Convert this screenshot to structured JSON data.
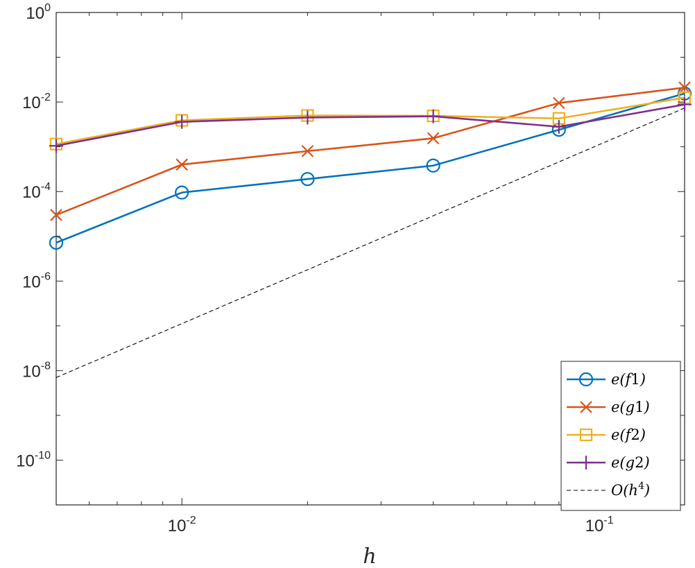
{
  "chart_data": {
    "type": "line",
    "xscale": "log",
    "yscale": "log",
    "xlabel": "h",
    "ylabel": "",
    "title": "",
    "xlim": [
      0.005,
      0.16
    ],
    "ylim": [
      1e-11,
      1
    ],
    "grid": false,
    "legend_position": "bottom-right",
    "x": [
      0.005,
      0.01,
      0.02,
      0.04,
      0.08,
      0.16
    ],
    "x_ticks": [
      {
        "value": 0.01,
        "base": "10",
        "exp": "-2"
      },
      {
        "value": 0.1,
        "base": "10",
        "exp": "-1"
      }
    ],
    "y_ticks": [
      {
        "value": 1,
        "base": "10",
        "exp": "0"
      },
      {
        "value": 0.01,
        "base": "10",
        "exp": "-2"
      },
      {
        "value": 0.0001,
        "base": "10",
        "exp": "-4"
      },
      {
        "value": 1e-06,
        "base": "10",
        "exp": "-6"
      },
      {
        "value": 1e-08,
        "base": "10",
        "exp": "-8"
      },
      {
        "value": 1e-10,
        "base": "10",
        "exp": "-10"
      }
    ],
    "series": [
      {
        "name": "e(f1)",
        "color": "#0072BD",
        "marker": "circle",
        "values": [
          7.2e-06,
          9.5e-05,
          0.00019,
          0.00038,
          0.0024,
          0.0155
        ]
      },
      {
        "name": "e(g1)",
        "color": "#D95319",
        "marker": "x",
        "values": [
          3e-05,
          0.0004,
          0.0008,
          0.00155,
          0.0095,
          0.021
        ]
      },
      {
        "name": "e(f2)",
        "color": "#EDB120",
        "marker": "square",
        "values": [
          0.00115,
          0.0039,
          0.005,
          0.0049,
          0.0043,
          0.0125
        ]
      },
      {
        "name": "e(g2)",
        "color": "#7E2F8E",
        "marker": "plus",
        "values": [
          0.00105,
          0.0036,
          0.0045,
          0.0048,
          0.0028,
          0.0088
        ]
      },
      {
        "name": "O(h4)",
        "color": "#000000",
        "marker": "none",
        "dashed": true,
        "values": [
          7e-09,
          1.12e-07,
          1.79e-06,
          2.87e-05,
          0.000459,
          0.00734
        ]
      }
    ],
    "legend_labels": {
      "s0": {
        "pre": "e(",
        "var": "f",
        "num": "1",
        "post": ")"
      },
      "s1": {
        "pre": "e(",
        "var": "g",
        "num": "1",
        "post": ")"
      },
      "s2": {
        "pre": "e(",
        "var": "f",
        "num": "2",
        "post": ")"
      },
      "s3": {
        "pre": "e(",
        "var": "g",
        "num": "2",
        "post": ")"
      },
      "s4": {
        "pre": "O(",
        "var": "h",
        "sup": "4",
        "post": ")"
      }
    }
  }
}
